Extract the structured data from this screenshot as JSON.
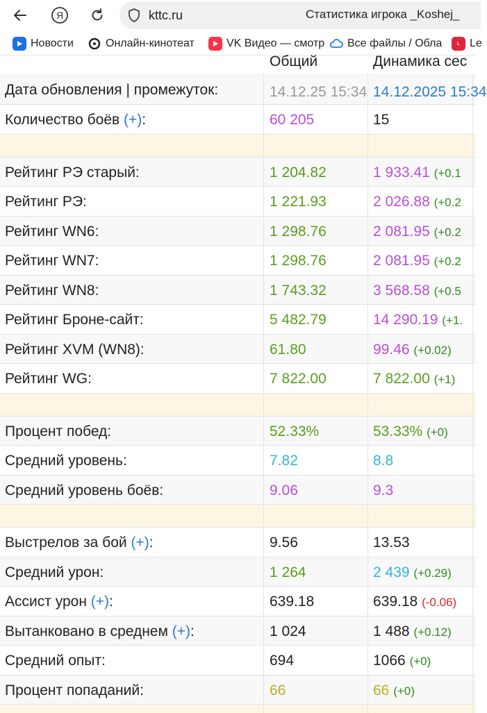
{
  "browser": {
    "url": "kttc.ru",
    "page_title": "Статистика игрока _Koshej_",
    "bookmarks": [
      {
        "label": "Новости",
        "icon": "play-icon",
        "color": "#1e6ee6"
      },
      {
        "label": "Онлайн-кинотеат",
        "icon": "kinopoisk-icon",
        "color": "#222222"
      },
      {
        "label": "VK Видео — смотр",
        "icon": "vk-video-icon",
        "color": "#ff3347"
      },
      {
        "label": "Все файлы / Обла",
        "icon": "cloud-icon",
        "color": "#1e7be6"
      },
      {
        "label": "Le",
        "icon": "live-icon",
        "color": "#e0243a"
      }
    ]
  },
  "table": {
    "headers": {
      "col1": "Общий",
      "col2": "Динамика сес"
    },
    "rows": [
      {
        "label": "Дата обновления | промежуток:",
        "v1": "14.12.25 15:34",
        "v2": "14.12.2025 15:34"
      },
      {
        "label": "Количество боёв ",
        "plus": "(+)",
        "suffix": ":",
        "v1": "60 205",
        "v2": "15"
      },
      {
        "label": "Рейтинг РЭ старый:",
        "v1": "1 204.82",
        "v2": "1 933.41",
        "d2": "(+0.1"
      },
      {
        "label": "Рейтинг РЭ:",
        "v1": "1 221.93",
        "v2": "2 026.88",
        "d2": "(+0.2"
      },
      {
        "label": "Рейтинг WN6:",
        "v1": "1 298.76",
        "v2": "2 081.95",
        "d2": "(+0.2"
      },
      {
        "label": "Рейтинг WN7:",
        "v1": "1 298.76",
        "v2": "2 081.95",
        "d2": "(+0.2"
      },
      {
        "label": "Рейтинг WN8:",
        "v1": "1 743.32",
        "v2": "3 568.58",
        "d2": "(+0.5"
      },
      {
        "label": "Рейтинг Броне-сайт:",
        "v1": "5 482.79",
        "v2": "14 290.19",
        "d2": "(+1."
      },
      {
        "label": "Рейтинг XVM (WN8):",
        "v1": "61.80",
        "v2": "99.46",
        "d2": "(+0.02)"
      },
      {
        "label": "Рейтинг WG:",
        "v1": "7 822.00",
        "v2": "7 822.00",
        "d2": "(+1)"
      },
      {
        "label": "Процент побед:",
        "v1": "52.33%",
        "v2": "53.33%",
        "d2": "(+0)"
      },
      {
        "label": "Средний уровень:",
        "v1": "7.82",
        "v2": "8.8"
      },
      {
        "label": "Средний уровень боёв:",
        "v1": "9.06",
        "v2": "9.3"
      },
      {
        "label": "Выстрелов за бой ",
        "plus": "(+)",
        "suffix": ":",
        "v1": "9.56",
        "v2": "13.53"
      },
      {
        "label": "Средний урон:",
        "v1": "1 264",
        "v2": "2 439",
        "d2": "(+0.29)"
      },
      {
        "label": "Ассист урон ",
        "plus": "(+)",
        "suffix": ":",
        "v1": "639.18",
        "v2": "639.18",
        "d2": "(-0.06)"
      },
      {
        "label": "Вытанковано в среднем ",
        "plus": "(+)",
        "suffix": ":",
        "v1": "1 024",
        "v2": "1 488",
        "d2": "(+0.12)"
      },
      {
        "label": "Средний опыт:",
        "v1": "694",
        "v2": "1066",
        "d2": "(+0)"
      },
      {
        "label": "Процент попаданий:",
        "v1": "66",
        "v2": "66",
        "d2": "(+0)"
      }
    ]
  }
}
